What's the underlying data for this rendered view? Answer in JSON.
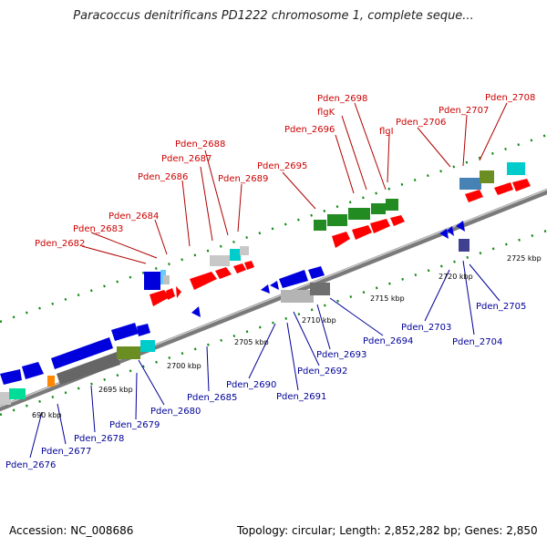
{
  "header": {
    "title": "Paracoccus denitrificans PD1222 chromosome 1, complete seque..."
  },
  "footer": {
    "accession": "Accession: NC_008686",
    "topology": "Topology: circular; Length: 2,852,282 bp; Genes: 2,850"
  },
  "scale_labels": [
    "690 kbp",
    "2695 kbp",
    "2700 kbp",
    "2705 kbp",
    "2710 kbp",
    "2715 kbp",
    "2720 kbp",
    "2725 kbp"
  ],
  "top_labels": [
    "Pden_2682",
    "Pden_2683",
    "Pden_2684",
    "Pden_2686",
    "Pden_2687",
    "Pden_2688",
    "Pden_2689",
    "Pden_2695",
    "Pden_2696",
    "flgK",
    "Pden_2698",
    "flgI",
    "Pden_2706",
    "Pden_2707",
    "Pden_2708"
  ],
  "bottom_labels": [
    "Pden_2676",
    "Pden_2677",
    "Pden_2678",
    "Pden_2679",
    "Pden_2680",
    "Pden_2685",
    "Pden_2690",
    "Pden_2691",
    "Pden_2692",
    "Pden_2693",
    "Pden_2694",
    "Pden_2703",
    "Pden_2704",
    "Pden_2705"
  ],
  "colors": {
    "backbone": "#8a8a8a",
    "forward_gene": "#ff0000",
    "reverse_gene": "#0000dd",
    "tick_green": "#118811",
    "top_label": "#cc0000",
    "bottom_label": "#000099"
  }
}
